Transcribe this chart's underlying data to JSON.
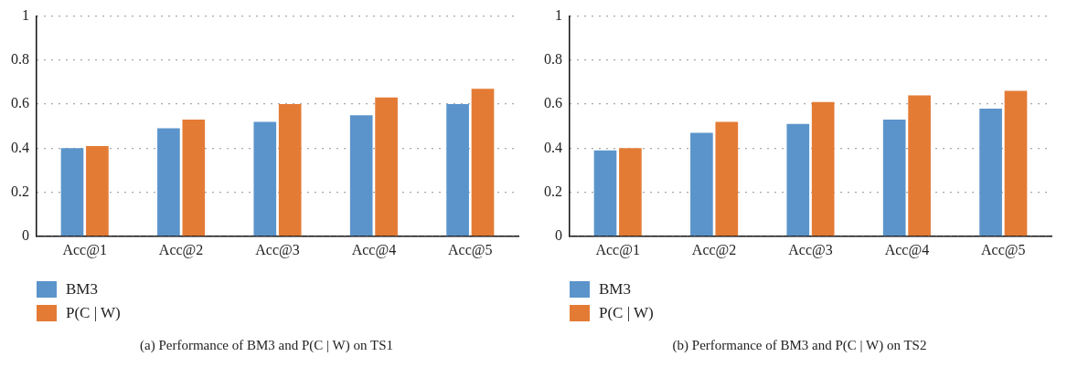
{
  "chart_data": [
    {
      "type": "bar",
      "title": "(a)  Performance of BM3 and P(C | W) on TS1",
      "categories": [
        "Acc@1",
        "Acc@2",
        "Acc@3",
        "Acc@4",
        "Acc@5"
      ],
      "series": [
        {
          "name": "BM3",
          "color": "#5b94cb",
          "values": [
            0.4,
            0.49,
            0.52,
            0.55,
            0.6
          ]
        },
        {
          "name": "P(C | W)",
          "color": "#e47b35",
          "values": [
            0.41,
            0.53,
            0.6,
            0.63,
            0.67
          ]
        }
      ],
      "ylim": [
        0,
        1
      ],
      "yticks": [
        0,
        0.2,
        0.4,
        0.6,
        0.8,
        1
      ],
      "grid": "y",
      "legend": "bottom left"
    },
    {
      "type": "bar",
      "title": "(b)  Performance of BM3 and P(C | W) on TS2",
      "categories": [
        "Acc@1",
        "Acc@2",
        "Acc@3",
        "Acc@4",
        "Acc@5"
      ],
      "series": [
        {
          "name": "BM3",
          "color": "#5b94cb",
          "values": [
            0.39,
            0.47,
            0.51,
            0.53,
            0.58
          ]
        },
        {
          "name": "P(C | W)",
          "color": "#e47b35",
          "values": [
            0.4,
            0.52,
            0.61,
            0.64,
            0.66
          ]
        }
      ],
      "ylim": [
        0,
        1
      ],
      "yticks": [
        0,
        0.2,
        0.4,
        0.6,
        0.8,
        1
      ],
      "grid": "y",
      "legend": "bottom left"
    }
  ]
}
